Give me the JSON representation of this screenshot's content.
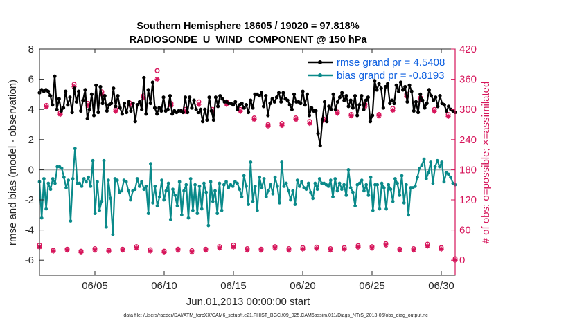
{
  "chart_data": {
    "type": "line",
    "title_line1": "Southern Hemisphere 18605 / 19020 = 97.818%",
    "title_line2": "RADIOSONDE_U_WIND_COMPONENT @ 150 hPa",
    "xlabel": "Jun.01,2013 00:00:00 start",
    "ylabel_left": "rmse and bias (model - observation)",
    "ylabel_right": "# of obs: o=possible; ×=assimilated",
    "footer": "data file: /Users/raeder/DAI/ATM_forcXX/CAM6_setup/f.e21.FHIST_BGC.f09_025.CAM6assim.011/Diags_NTrS_2013-06/obs_diag_output.nc",
    "xlim": [
      1.0,
      31.0
    ],
    "ylim_left": [
      -7,
      8
    ],
    "ylim_right": [
      -30,
      420
    ],
    "x_ticks": [
      5,
      10,
      15,
      20,
      25,
      30
    ],
    "x_tick_labels": [
      "06/05",
      "06/10",
      "06/15",
      "06/20",
      "06/25",
      "06/30"
    ],
    "y_left_ticks": [
      -6,
      -4,
      -2,
      0,
      2,
      4,
      6,
      8
    ],
    "y_right_ticks": [
      0,
      60,
      120,
      180,
      240,
      300,
      360,
      420
    ],
    "legend": {
      "location": "top-right",
      "entries": [
        {
          "label": "rmse grand pr = 4.5408",
          "color": "#0d5fe0"
        },
        {
          "label": "bias grand pr = -0.8193",
          "color": "#0d5fe0"
        }
      ]
    },
    "colors": {
      "rmse": "#000000",
      "bias": "#0a8a8a",
      "obs": "#d6145a",
      "zero_line": "#b3b3b3",
      "right_axis": "#d6145a"
    },
    "series": [
      {
        "name": "rmse",
        "axis": "left",
        "values": [
          5.1,
          5.3,
          5.2,
          5.3,
          5.2,
          4.9,
          4.3,
          6.2,
          4.0,
          4.7,
          3.9,
          4.1,
          5.2,
          4.3,
          4.8,
          3.8,
          5.4,
          4.5,
          5.2,
          3.9,
          4.6,
          5.3,
          3.4,
          4.0,
          5.0,
          3.6,
          5.6,
          3.8,
          5.5,
          4.4,
          4.9,
          3.9,
          4.3,
          4.4,
          5.4,
          4.2,
          4.9,
          4.1,
          3.7,
          4.4,
          3.8,
          4.5,
          3.9,
          4.4,
          3.2,
          4.3,
          4.5,
          4.0,
          6.1,
          3.7,
          5.3,
          4.4,
          5.8,
          4.1,
          3.7,
          4.1,
          3.9,
          4.8,
          3.9,
          4.0,
          4.9,
          3.7,
          3.9,
          3.8,
          3.9,
          3.9,
          3.8,
          4.8,
          3.8,
          4.8,
          4.1,
          4.6,
          4.0,
          3.8,
          4.0,
          3.2,
          4.0,
          3.3,
          4.8,
          3.9,
          3.3,
          4.8,
          4.2,
          4.9,
          4.7,
          4.5,
          4.5,
          4.4,
          4.4,
          4.3,
          4.5,
          4.0,
          4.3,
          4.4,
          4.1,
          4.3,
          3.8,
          4.6,
          4.1,
          5.0,
          5.0,
          4.9,
          5.1,
          4.2,
          4.9,
          3.6,
          4.4,
          4.7,
          4.5,
          4.8,
          5.1,
          4.5,
          5.1,
          4.7,
          4.6,
          4.3,
          4.0,
          5.0,
          4.5,
          4.5,
          4.4,
          5.2,
          4.3,
          5.0,
          3.6,
          4.1,
          3.9,
          3.9,
          2.4,
          1.6,
          3.3,
          4.5,
          3.2,
          4.2,
          4.0,
          5.0,
          4.0,
          4.5,
          4.8,
          5.1,
          4.6,
          4.9,
          4.2,
          4.6,
          4.1,
          4.9,
          3.6,
          4.3,
          4.9,
          4.0,
          4.6,
          4.8,
          3.2,
          3.6,
          5.9,
          5.3,
          5.7,
          5.4,
          4.1,
          5.5,
          5.7,
          4.4,
          4.6,
          4.4,
          5.6,
          5.2,
          5.8,
          5.3,
          5.5,
          4.5,
          5.6,
          5.2,
          3.9,
          4.5,
          3.8,
          5.0,
          4.6,
          4.1,
          4.4,
          5.3,
          4.9,
          4.6,
          4.8,
          4.2,
          4.9,
          4.4,
          4.3,
          3.9,
          4.2,
          4.0,
          3.9,
          3.8
        ]
      },
      {
        "name": "bias",
        "axis": "left",
        "values": [
          -0.8,
          -3.2,
          -0.6,
          -2.6,
          -0.9,
          -1.3,
          -0.6,
          -0.9,
          0.2,
          0.2,
          0.1,
          -0.5,
          -1.2,
          -0.7,
          -3.4,
          -0.6,
          1.4,
          -0.9,
          -0.9,
          -1.1,
          -0.6,
          -0.8,
          -0.5,
          -1.1,
          0.6,
          -2.9,
          -0.8,
          -2.7,
          -2.1,
          0.6,
          -3.8,
          -0.7,
          -1.9,
          -4.3,
          -0.6,
          -0.7,
          -1.5,
          -1.4,
          -0.7,
          -0.8,
          -1.4,
          -2.0,
          -1.4,
          -1.3,
          -0.6,
          -1.1,
          -0.8,
          -1.3,
          -1.1,
          -2.9,
          0.4,
          -2.2,
          -1.1,
          -2.4,
          -1.8,
          -0.7,
          -2.0,
          -1.4,
          -0.9,
          -3.3,
          -1.3,
          -1.7,
          -2.4,
          -0.8,
          -3.0,
          -1.4,
          -1.0,
          -3.2,
          -0.6,
          -2.7,
          -1.0,
          -2.9,
          -1.1,
          -2.6,
          -0.9,
          -1.5,
          -3.7,
          -0.8,
          -2.1,
          -1.4,
          -2.9,
          -0.9,
          -2.7,
          -1.0,
          -0.8,
          -1.2,
          -1.0,
          -1.1,
          -0.8,
          -0.9,
          -1.3,
          -1.8,
          -0.4,
          -1.1,
          -2.3,
          0.5,
          -2.1,
          -1.1,
          -2.7,
          -0.5,
          -1.2,
          -0.6,
          -1.8,
          -1.4,
          -1.0,
          -1.6,
          -0.5,
          -1.1,
          -2.2,
          0.5,
          -1.1,
          -0.9,
          -1.4,
          -2.0,
          -1.4,
          -2.3,
          -0.7,
          -1.1,
          -0.8,
          -1.2,
          -1.3,
          -0.9,
          -1.5,
          -1.9,
          -0.9,
          -1.3,
          -0.6,
          -0.9,
          -0.9,
          -1.0,
          -1.1,
          -0.7,
          -1.8,
          -0.6,
          -1.4,
          -0.9,
          -1.3,
          -1.0,
          -1.7,
          0.0,
          -1.2,
          -1.5,
          -2.4,
          -1.0,
          -0.9,
          -0.7,
          -1.4,
          -1.0,
          -1.7,
          -0.5,
          -2.7,
          -1.0,
          -1.0,
          -2.6,
          -0.9,
          -1.2,
          -2.6,
          -1.0,
          -1.3,
          -2.1,
          -0.6,
          -0.9,
          -1.7,
          -0.4,
          -2.2,
          -1.0,
          -3.0,
          -1.2,
          -1.2,
          -1.1,
          -0.5,
          0.1,
          0.3,
          0.7,
          -0.6,
          -0.2,
          0.5,
          -0.9,
          0.2,
          0.6,
          0.2,
          0.5,
          -0.8,
          -0.2,
          -0.3,
          -0.5,
          -0.9,
          -1.0
        ]
      },
      {
        "name": "obs possible",
        "axis": "right",
        "marker": "o",
        "x": [
          1.0,
          1.5,
          2.0,
          2.5,
          3.0,
          3.5,
          4.0,
          4.5,
          5.0,
          5.5,
          6.0,
          6.5,
          7.0,
          7.5,
          8.0,
          8.5,
          9.0,
          9.5,
          10.0,
          10.5,
          11.0,
          11.5,
          12.0,
          12.5,
          13.0,
          13.5,
          14.0,
          14.5,
          15.0,
          15.5,
          16.0,
          16.5,
          17.0,
          17.5,
          18.0,
          18.5,
          19.0,
          19.5,
          20.0,
          20.5,
          21.0,
          21.5,
          22.0,
          22.5,
          23.0,
          23.5,
          24.0,
          24.5,
          25.0,
          25.5,
          26.0,
          26.5,
          27.0,
          27.5,
          28.0,
          28.5,
          29.0,
          29.5,
          30.0,
          30.5,
          31.0
        ],
        "values": [
          30,
          308,
          20,
          293,
          22,
          350,
          18,
          312,
          23,
          335,
          20,
          300,
          22,
          313,
          27,
          327,
          21,
          377,
          18,
          312,
          22,
          300,
          19,
          315,
          22,
          300,
          27,
          315,
          30,
          300,
          23,
          283,
          22,
          270,
          27,
          272,
          23,
          283,
          25,
          276,
          26,
          281,
          23,
          295,
          25,
          290,
          29,
          310,
          27,
          290,
          33,
          302,
          22,
          330,
          23,
          323,
          32,
          300,
          25,
          290,
          3
        ]
      },
      {
        "name": "obs assimilated",
        "axis": "right",
        "marker": "x",
        "x": [
          1.0,
          1.5,
          2.0,
          2.5,
          3.0,
          3.5,
          4.0,
          4.5,
          5.0,
          5.5,
          6.0,
          6.5,
          7.0,
          7.5,
          8.0,
          8.5,
          9.0,
          9.5,
          10.0,
          10.5,
          11.0,
          11.5,
          12.0,
          12.5,
          13.0,
          13.5,
          14.0,
          14.5,
          15.0,
          15.5,
          16.0,
          16.5,
          17.0,
          17.5,
          18.0,
          18.5,
          19.0,
          19.5,
          20.0,
          20.5,
          21.0,
          21.5,
          22.0,
          22.5,
          23.0,
          23.5,
          24.0,
          24.5,
          25.0,
          25.5,
          26.0,
          26.5,
          27.0,
          27.5,
          28.0,
          28.5,
          29.0,
          29.5,
          30.0,
          30.5,
          31.0
        ],
        "values": [
          26,
          305,
          18,
          290,
          20,
          345,
          15,
          308,
          20,
          330,
          18,
          296,
          20,
          309,
          24,
          323,
          18,
          360,
          15,
          308,
          20,
          296,
          16,
          310,
          20,
          296,
          24,
          310,
          26,
          296,
          20,
          280,
          20,
          267,
          24,
          268,
          20,
          280,
          22,
          272,
          23,
          278,
          20,
          292,
          22,
          287,
          26,
          306,
          24,
          287,
          30,
          298,
          20,
          326,
          20,
          319,
          28,
          296,
          22,
          286,
          0
        ]
      }
    ]
  }
}
